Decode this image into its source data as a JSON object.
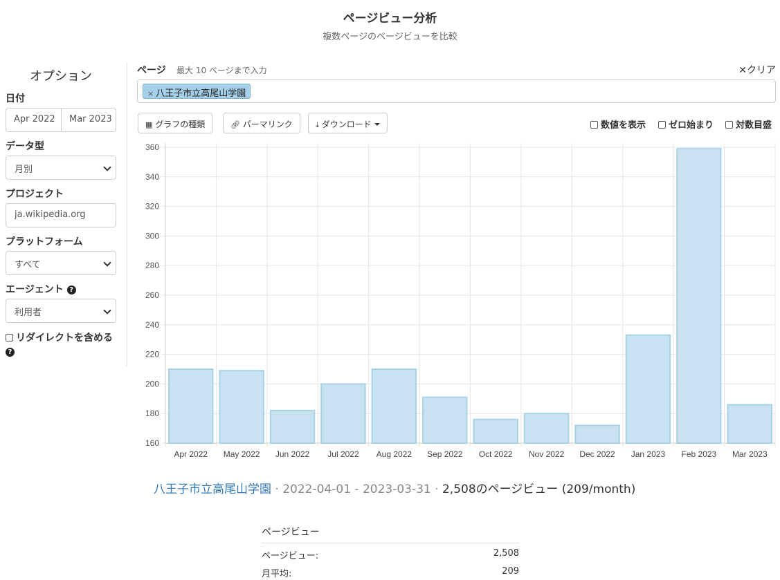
{
  "header": {
    "title": "ページビュー分析",
    "subtitle": "複数ページのページビューを比較"
  },
  "sidebar": {
    "heading": "オプション",
    "date": {
      "label": "日付",
      "start": "Apr 2022",
      "end": "Mar 2023"
    },
    "data_type": {
      "label": "データ型",
      "value": "月別"
    },
    "project": {
      "label": "プロジェクト",
      "value": "ja.wikipedia.org"
    },
    "platform": {
      "label": "プラットフォーム",
      "value": "すべて"
    },
    "agent": {
      "label": "エージェント",
      "value": "利用者"
    },
    "redirects": {
      "label": "リダイレクトを含める",
      "checked": false
    }
  },
  "pages": {
    "label": "ページ",
    "hint": "最大 10 ページまで入力",
    "clear_label": "クリア",
    "tags": [
      "八王子市立高尾山学園"
    ]
  },
  "toolbar": {
    "chart_type_label": "グラフの種類",
    "permalink_label": "パーマリンク",
    "download_label": "ダウンロード"
  },
  "options": {
    "show_values_label": "数値を表示",
    "begin_at_zero_label": "ゼロ始まり",
    "log_scale_label": "対数目盛"
  },
  "colors": {
    "bar_fill": "#c8e2f1",
    "bar_stroke": "#a9d2e6",
    "link": "#337ab7"
  },
  "chart_data": {
    "type": "bar",
    "categories": [
      "Apr 2022",
      "May 2022",
      "Jun 2022",
      "Jul 2022",
      "Aug 2022",
      "Sep 2022",
      "Oct 2022",
      "Nov 2022",
      "Dec 2022",
      "Jan 2023",
      "Feb 2023",
      "Mar 2023"
    ],
    "series": [
      {
        "name": "八王子市立高尾山学園",
        "values": [
          210,
          209,
          182,
          200,
          210,
          191,
          176,
          180,
          172,
          233,
          359,
          186
        ]
      }
    ],
    "ylim": [
      160,
      360
    ],
    "yticks": [
      160,
      180,
      200,
      220,
      240,
      260,
      280,
      300,
      320,
      340,
      360
    ],
    "grid": true,
    "legend": "none"
  },
  "summary": {
    "page": "八王子市立高尾山学園",
    "range": "2022-04-01 - 2023-03-31",
    "total": "2,508のページビュー",
    "rate": "(209/month)"
  },
  "stats": {
    "title": "ページビュー",
    "rows": [
      {
        "key": "ページビュー:",
        "value": "2,508"
      },
      {
        "key": "月平均:",
        "value": "209"
      }
    ]
  }
}
